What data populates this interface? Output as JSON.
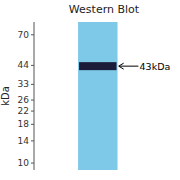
{
  "chart_data": {
    "type": "blot",
    "title": "Western Blot",
    "y_label": "kDa",
    "categories": [
      null
    ],
    "values": [
      43.5
    ],
    "color": "#1c1c3a",
    "annotations": [
      "43kDa"
    ],
    "log": "y",
    "ylim": [
      9,
      85
    ],
    "yticks": [
      70,
      44,
      33,
      26,
      22,
      18,
      14,
      10
    ],
    "tick_labels": "y",
    "grid": false
  }
}
